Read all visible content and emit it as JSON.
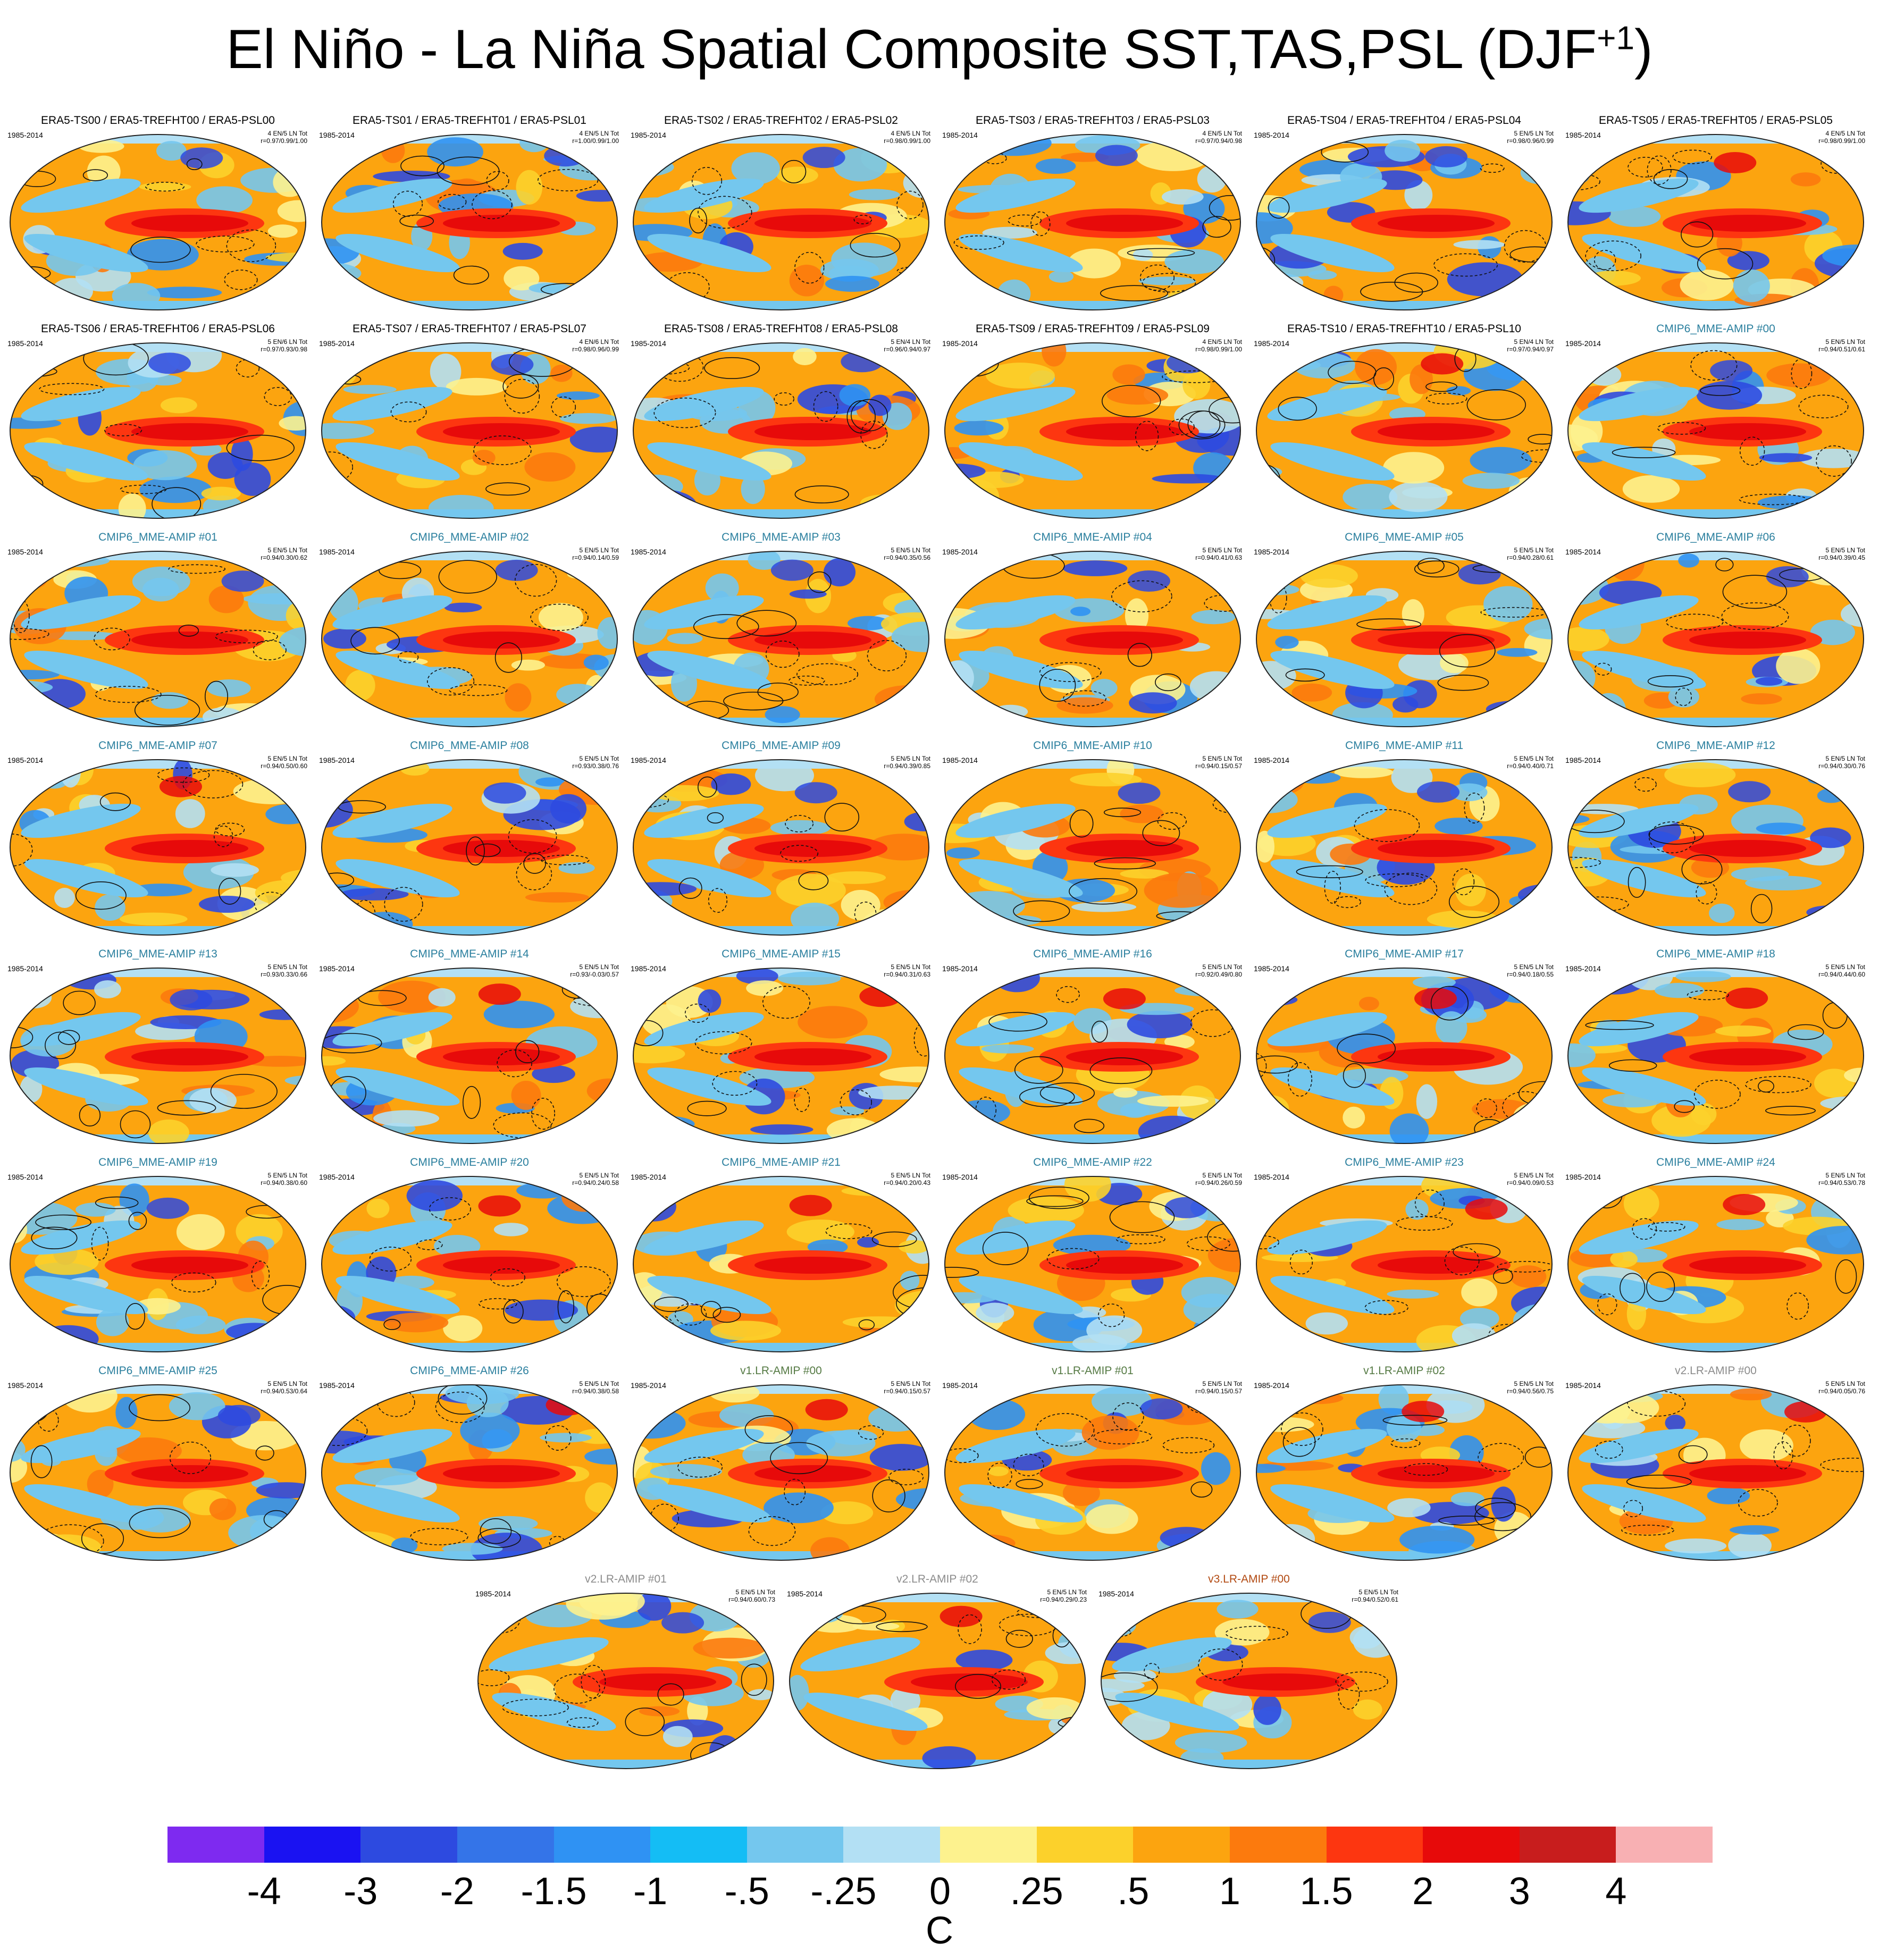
{
  "title": {
    "main": "El Niño - La Niña Spatial Composite SST,TAS,PSL (DJF",
    "superscript": "+1",
    "close": ")"
  },
  "period": "1985-2014",
  "panels": [
    {
      "title": "ERA5-TS00 / ERA5-TREFHT00 / ERA5-PSL00",
      "style": "era5",
      "counts": "4 EN/5 LN Tot",
      "corr": "r=0.97/0.99/1.00"
    },
    {
      "title": "ERA5-TS01 / ERA5-TREFHT01 / ERA5-PSL01",
      "style": "era5",
      "counts": "4 EN/5 LN Tot",
      "corr": "r=1.00/0.99/1.00"
    },
    {
      "title": "ERA5-TS02 / ERA5-TREFHT02 / ERA5-PSL02",
      "style": "era5",
      "counts": "4 EN/5 LN Tot",
      "corr": "r=0.98/0.99/1.00"
    },
    {
      "title": "ERA5-TS03 / ERA5-TREFHT03 / ERA5-PSL03",
      "style": "era5",
      "counts": "4 EN/5 LN Tot",
      "corr": "r=0.97/0.94/0.98"
    },
    {
      "title": "ERA5-TS04 / ERA5-TREFHT04 / ERA5-PSL04",
      "style": "era5",
      "counts": "5 EN/5 LN Tot",
      "corr": "r=0.98/0.96/0.99"
    },
    {
      "title": "ERA5-TS05 / ERA5-TREFHT05 / ERA5-PSL05",
      "style": "era5",
      "counts": "4 EN/5 LN Tot",
      "corr": "r=0.98/0.99/1.00"
    },
    {
      "title": "ERA5-TS06 / ERA5-TREFHT06 / ERA5-PSL06",
      "style": "era5",
      "counts": "5 EN/6 LN Tot",
      "corr": "r=0.97/0.93/0.98"
    },
    {
      "title": "ERA5-TS07 / ERA5-TREFHT07 / ERA5-PSL07",
      "style": "era5",
      "counts": "4 EN/6 LN Tot",
      "corr": "r=0.98/0.96/0.99"
    },
    {
      "title": "ERA5-TS08 / ERA5-TREFHT08 / ERA5-PSL08",
      "style": "era5",
      "counts": "5 EN/4 LN Tot",
      "corr": "r=0.96/0.94/0.97"
    },
    {
      "title": "ERA5-TS09 / ERA5-TREFHT09 / ERA5-PSL09",
      "style": "era5",
      "counts": "4 EN/5 LN Tot",
      "corr": "r=0.98/0.99/1.00"
    },
    {
      "title": "ERA5-TS10 / ERA5-TREFHT10 / ERA5-PSL10",
      "style": "era5",
      "counts": "5 EN/4 LN Tot",
      "corr": "r=0.97/0.94/0.97"
    },
    {
      "title": "CMIP6_MME-AMIP  #00",
      "style": "cmip6",
      "counts": "5 EN/5 LN Tot",
      "corr": "r=0.94/0.51/0.61"
    },
    {
      "title": "CMIP6_MME-AMIP  #01",
      "style": "cmip6",
      "counts": "5 EN/5 LN Tot",
      "corr": "r=0.94/0.30/0.62"
    },
    {
      "title": "CMIP6_MME-AMIP  #02",
      "style": "cmip6",
      "counts": "5 EN/5 LN Tot",
      "corr": "r=0.94/0.14/0.59"
    },
    {
      "title": "CMIP6_MME-AMIP  #03",
      "style": "cmip6",
      "counts": "5 EN/5 LN Tot",
      "corr": "r=0.94/0.35/0.56"
    },
    {
      "title": "CMIP6_MME-AMIP  #04",
      "style": "cmip6",
      "counts": "5 EN/5 LN Tot",
      "corr": "r=0.94/0.41/0.63"
    },
    {
      "title": "CMIP6_MME-AMIP  #05",
      "style": "cmip6",
      "counts": "5 EN/5 LN Tot",
      "corr": "r=0.94/0.28/0.61"
    },
    {
      "title": "CMIP6_MME-AMIP  #06",
      "style": "cmip6",
      "counts": "5 EN/5 LN Tot",
      "corr": "r=0.94/0.39/0.45"
    },
    {
      "title": "CMIP6_MME-AMIP  #07",
      "style": "cmip6",
      "counts": "5 EN/5 LN Tot",
      "corr": "r=0.94/0.50/0.60"
    },
    {
      "title": "CMIP6_MME-AMIP  #08",
      "style": "cmip6",
      "counts": "5 EN/5 LN Tot",
      "corr": "r=0.93/0.38/0.76"
    },
    {
      "title": "CMIP6_MME-AMIP  #09",
      "style": "cmip6",
      "counts": "5 EN/5 LN Tot",
      "corr": "r=0.94/0.39/0.85"
    },
    {
      "title": "CMIP6_MME-AMIP  #10",
      "style": "cmip6",
      "counts": "5 EN/5 LN Tot",
      "corr": "r=0.94/0.15/0.57"
    },
    {
      "title": "CMIP6_MME-AMIP  #11",
      "style": "cmip6",
      "counts": "5 EN/5 LN Tot",
      "corr": "r=0.94/0.40/0.71"
    },
    {
      "title": "CMIP6_MME-AMIP  #12",
      "style": "cmip6",
      "counts": "5 EN/5 LN Tot",
      "corr": "r=0.94/0.30/0.76"
    },
    {
      "title": "CMIP6_MME-AMIP  #13",
      "style": "cmip6",
      "counts": "5 EN/5 LN Tot",
      "corr": "r=0.93/0.33/0.66"
    },
    {
      "title": "CMIP6_MME-AMIP  #14",
      "style": "cmip6",
      "counts": "5 EN/5 LN Tot",
      "corr": "r=0.93/-0.03/0.57"
    },
    {
      "title": "CMIP6_MME-AMIP  #15",
      "style": "cmip6",
      "counts": "5 EN/5 LN Tot",
      "corr": "r=0.94/0.31/0.63"
    },
    {
      "title": "CMIP6_MME-AMIP  #16",
      "style": "cmip6",
      "counts": "5 EN/5 LN Tot",
      "corr": "r=0.92/0.49/0.80"
    },
    {
      "title": "CMIP6_MME-AMIP  #17",
      "style": "cmip6",
      "counts": "5 EN/5 LN Tot",
      "corr": "r=0.94/0.18/0.55"
    },
    {
      "title": "CMIP6_MME-AMIP  #18",
      "style": "cmip6",
      "counts": "5 EN/5 LN Tot",
      "corr": "r=0.94/0.44/0.60"
    },
    {
      "title": "CMIP6_MME-AMIP  #19",
      "style": "cmip6",
      "counts": "5 EN/5 LN Tot",
      "corr": "r=0.94/0.38/0.60"
    },
    {
      "title": "CMIP6_MME-AMIP  #20",
      "style": "cmip6",
      "counts": "5 EN/5 LN Tot",
      "corr": "r=0.94/0.24/0.58"
    },
    {
      "title": "CMIP6_MME-AMIP  #21",
      "style": "cmip6",
      "counts": "5 EN/5 LN Tot",
      "corr": "r=0.94/0.20/0.43"
    },
    {
      "title": "CMIP6_MME-AMIP  #22",
      "style": "cmip6",
      "counts": "5 EN/5 LN Tot",
      "corr": "r=0.94/0.26/0.59"
    },
    {
      "title": "CMIP6_MME-AMIP  #23",
      "style": "cmip6",
      "counts": "5 EN/5 LN Tot",
      "corr": "r=0.94/0.09/0.53"
    },
    {
      "title": "CMIP6_MME-AMIP  #24",
      "style": "cmip6",
      "counts": "5 EN/5 LN Tot",
      "corr": "r=0.94/0.53/0.78"
    },
    {
      "title": "CMIP6_MME-AMIP  #25",
      "style": "cmip6",
      "counts": "5 EN/5 LN Tot",
      "corr": "r=0.94/0.53/0.64"
    },
    {
      "title": "CMIP6_MME-AMIP  #26",
      "style": "cmip6",
      "counts": "5 EN/5 LN Tot",
      "corr": "r=0.94/0.38/0.58"
    },
    {
      "title": "v1.LR-AMIP  #00",
      "style": "v1",
      "counts": "5 EN/5 LN Tot",
      "corr": "r=0.94/0.15/0.57"
    },
    {
      "title": "v1.LR-AMIP  #01",
      "style": "v1",
      "counts": "5 EN/5 LN Tot",
      "corr": "r=0.94/0.15/0.57"
    },
    {
      "title": "v1.LR-AMIP  #02",
      "style": "v1",
      "counts": "5 EN/5 LN Tot",
      "corr": "r=0.94/0.56/0.75"
    },
    {
      "title": "v2.LR-AMIP  #00",
      "style": "v2",
      "counts": "5 EN/5 LN Tot",
      "corr": "r=0.94/0.05/0.76"
    },
    {
      "title": "v2.LR-AMIP  #01",
      "style": "v2",
      "counts": "5 EN/5 LN Tot",
      "corr": "r=0.94/0.60/0.73"
    },
    {
      "title": "v2.LR-AMIP  #02",
      "style": "v2",
      "counts": "5 EN/5 LN Tot",
      "corr": "r=0.94/0.29/0.23"
    },
    {
      "title": "v3.LR-AMIP  #00",
      "style": "v3",
      "counts": "5 EN/5 LN Tot",
      "corr": "r=0.94/0.52/0.61"
    }
  ],
  "title_colors": {
    "era5": "#000000",
    "cmip6": "#2a7f9e",
    "v1": "#557a44",
    "v2": "#8c8c8c",
    "v3": "#b24a12"
  },
  "colorbar": {
    "colors": [
      "#7e2af0",
      "#1a12f2",
      "#2d4ae0",
      "#3474e8",
      "#2f92f3",
      "#14bdf5",
      "#74c7ee",
      "#b3e0f4",
      "#fdf28e",
      "#fcd12b",
      "#fca40f",
      "#fc7a0d",
      "#fd3610",
      "#e70a0a",
      "#c81d1d",
      "#f8b0b3"
    ],
    "tick_labels": [
      "-4",
      "-3",
      "-2",
      "-1.5",
      "-1",
      "-.5",
      "-.25",
      "0",
      ".25",
      ".5",
      "1",
      "1.5",
      "2",
      "3",
      "4"
    ],
    "units": "C"
  }
}
